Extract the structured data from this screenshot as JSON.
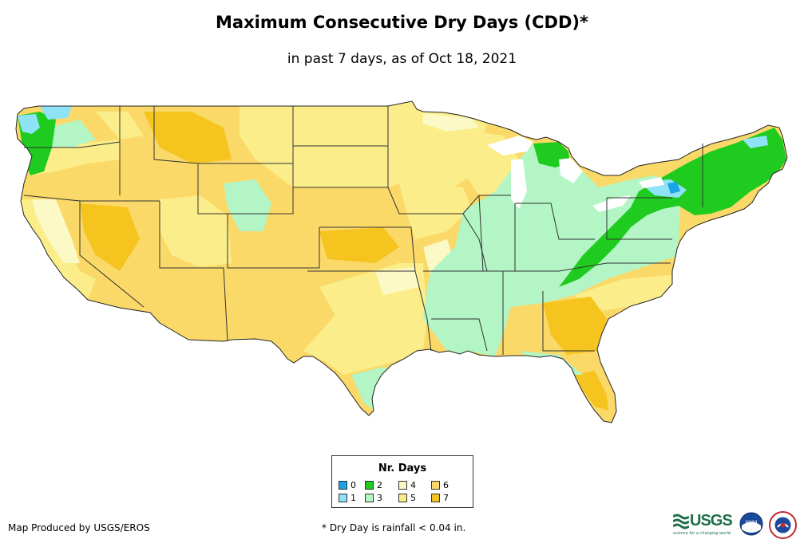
{
  "header": {
    "title": "Maximum Consecutive Dry Days (CDD)*",
    "subtitle": "in past 7 days, as of Oct 18, 2021"
  },
  "legend": {
    "title": "Nr. Days",
    "items": [
      {
        "label": "0",
        "color": "#1aa3e8"
      },
      {
        "label": "1",
        "color": "#8ee3f7"
      },
      {
        "label": "2",
        "color": "#1ecb1e"
      },
      {
        "label": "3",
        "color": "#b3f5c4"
      },
      {
        "label": "4",
        "color": "#fbf9c5"
      },
      {
        "label": "5",
        "color": "#fbee8a"
      },
      {
        "label": "6",
        "color": "#fbd968"
      },
      {
        "label": "7",
        "color": "#f6c41e"
      }
    ]
  },
  "footer": {
    "credit": "Map Produced by USGS/EROS",
    "footnote": "* Dry Day is rainfall < 0.04 in."
  },
  "logos": {
    "usgs_text": "USGS",
    "usgs_tagline": "science for a changing world",
    "noaa_text": "noaa"
  }
}
